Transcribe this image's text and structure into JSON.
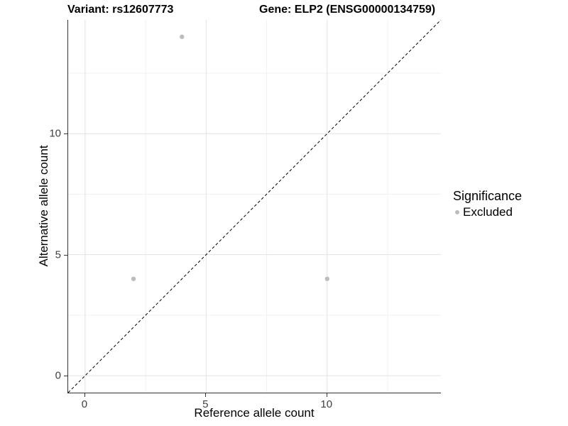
{
  "chart_data": {
    "type": "scatter",
    "title_left": "Variant: rs12607773",
    "title_right": "Gene: ELP2 (ENSG00000134759)",
    "xlabel": "Reference allele count",
    "ylabel": "Alternative allele count",
    "xlim": [
      -0.7,
      14.7
    ],
    "ylim": [
      -0.7,
      14.7
    ],
    "x_major_ticks": [
      0,
      5,
      10
    ],
    "y_major_ticks": [
      0,
      5,
      10
    ],
    "x_minor_gridlines": [
      2.5,
      7.5,
      12.5
    ],
    "y_minor_gridlines": [
      2.5,
      7.5,
      12.5
    ],
    "grid": true,
    "legend_position": "right",
    "series": [
      {
        "name": "Excluded",
        "color": "#bdbdbd",
        "points": [
          [
            2,
            4
          ],
          [
            4,
            14
          ],
          [
            10,
            4
          ]
        ]
      }
    ],
    "reference_line": {
      "type": "identity",
      "style": "dashed",
      "color": "#000000",
      "from": [
        -0.7,
        -0.7
      ],
      "to": [
        14.7,
        14.7
      ]
    },
    "legend": {
      "title": "Significance",
      "items": [
        {
          "label": "Excluded",
          "color": "#bdbdbd"
        }
      ]
    }
  },
  "colors": {
    "background": "#ffffff",
    "axis_line": "#333333",
    "tick_label": "#404040",
    "grid_major": "#e2e2e2",
    "grid_minor": "#f1f1f1",
    "point": "#bdbdbd"
  }
}
